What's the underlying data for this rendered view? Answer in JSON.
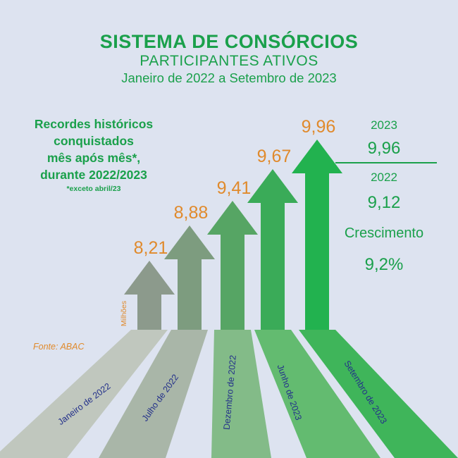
{
  "header": {
    "title": "SISTEMA DE CONSÓRCIOS",
    "subtitle": "PARTICIPANTES ATIVOS",
    "period": "Janeiro de 2022 a Setembro de 2023"
  },
  "note": {
    "lines": [
      "Recordes históricos",
      "conquistados",
      "mês após mês*,",
      "durante 2022/2023"
    ],
    "footnote": "*exceto abril/23"
  },
  "source": "Fonte: ABAC",
  "comparison": {
    "year_a": "2023",
    "value_a": "9,96",
    "year_b": "2022",
    "value_b": "9,12",
    "growth_label": "Crescimento",
    "growth_value": "9,2%"
  },
  "chart_data": {
    "type": "bar",
    "categories": [
      "Janeiro de 2022",
      "Julho de 2022",
      "Dezembro de 2022",
      "Junho de 2023",
      "Setembro de 2023"
    ],
    "values": [
      8.21,
      8.88,
      9.41,
      9.67,
      9.96
    ],
    "value_labels": [
      "8,21",
      "8,88",
      "9,41",
      "9,67",
      "9,96"
    ],
    "unit_label": "Milhões",
    "colors": [
      "#8c9a8c",
      "#7d9c7f",
      "#56a564",
      "#3aab58",
      "#22b24f"
    ],
    "beam_colors": [
      "#c0c7be",
      "#a9b6a8",
      "#83bb88",
      "#63bb70",
      "#3fb55a"
    ],
    "value_color": "#e08a2c",
    "category_color": "#23308a"
  }
}
